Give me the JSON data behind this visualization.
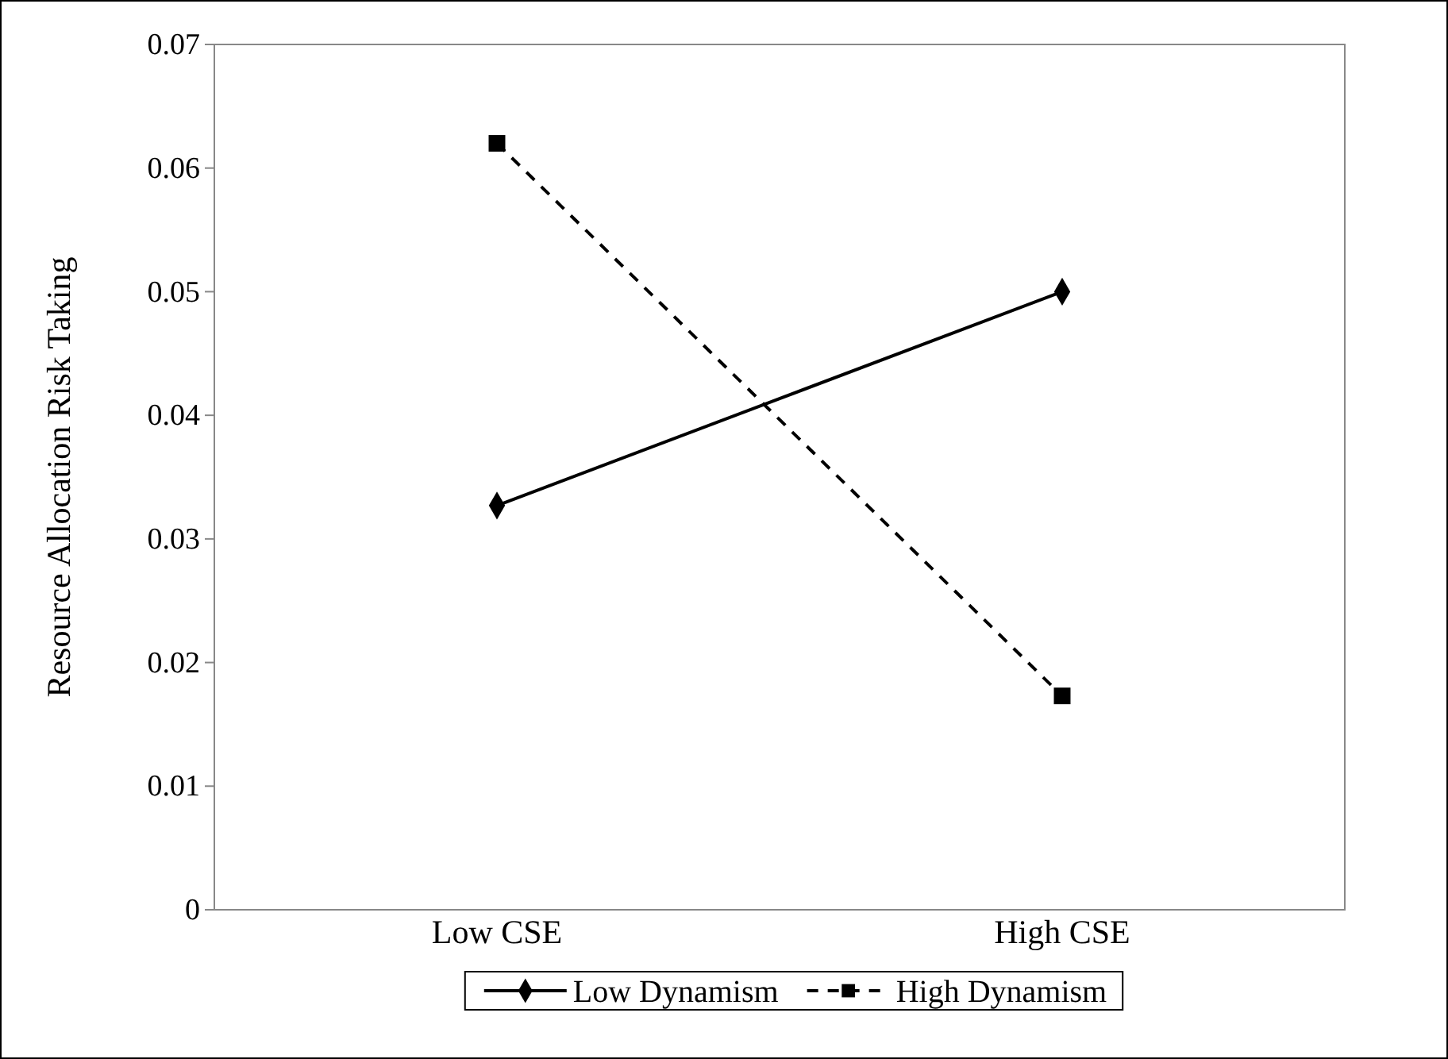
{
  "chart_data": {
    "type": "line",
    "ylabel": "Resource Allocation Risk Taking",
    "categories": [
      "Low CSE",
      "High CSE"
    ],
    "series": [
      {
        "name": "Low Dynamism",
        "color": "#000000",
        "values": [
          0.0327,
          0.05
        ],
        "marker": "diamond",
        "line_style": "solid"
      },
      {
        "name": "High Dynamism",
        "color": "#000000",
        "values": [
          0.062,
          0.0173
        ],
        "marker": "square",
        "line_style": "dashed"
      }
    ],
    "ylim": [
      0,
      0.07
    ],
    "yticks": [
      0,
      0.01,
      0.02,
      0.03,
      0.04,
      0.05,
      0.06,
      0.07
    ],
    "grid": false,
    "legend": "bottom"
  }
}
